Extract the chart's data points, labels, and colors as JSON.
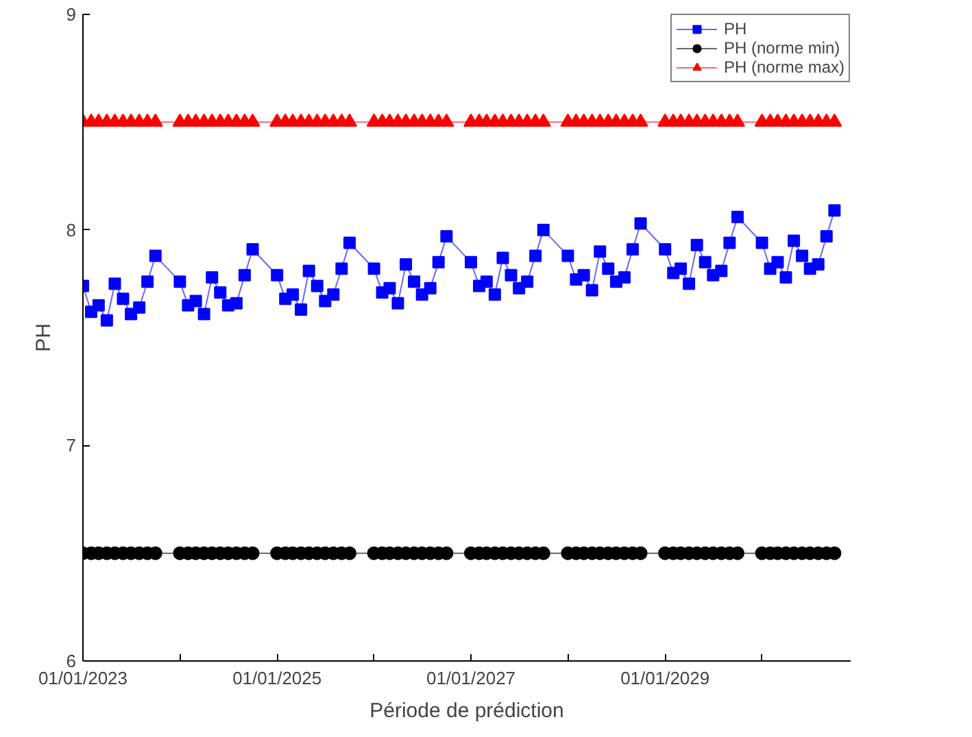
{
  "chart_data": {
    "type": "line",
    "xlabel": "Période de prédiction",
    "ylabel": "PH",
    "x": [
      "2023-01",
      "2023-02",
      "2023-03",
      "2023-04",
      "2023-05",
      "2023-06",
      "2023-07",
      "2023-08",
      "2023-09",
      "2023-10",
      "2024-01",
      "2024-02",
      "2024-03",
      "2024-04",
      "2024-05",
      "2024-06",
      "2024-07",
      "2024-08",
      "2024-09",
      "2024-10",
      "2025-01",
      "2025-02",
      "2025-03",
      "2025-04",
      "2025-05",
      "2025-06",
      "2025-07",
      "2025-08",
      "2025-09",
      "2025-10",
      "2026-01",
      "2026-02",
      "2026-03",
      "2026-04",
      "2026-05",
      "2026-06",
      "2026-07",
      "2026-08",
      "2026-09",
      "2026-10",
      "2027-01",
      "2027-02",
      "2027-03",
      "2027-04",
      "2027-05",
      "2027-06",
      "2027-07",
      "2027-08",
      "2027-09",
      "2027-10",
      "2028-01",
      "2028-02",
      "2028-03",
      "2028-04",
      "2028-05",
      "2028-06",
      "2028-07",
      "2028-08",
      "2028-09",
      "2028-10",
      "2029-01",
      "2029-02",
      "2029-03",
      "2029-04",
      "2029-05",
      "2029-06",
      "2029-07",
      "2029-08",
      "2029-09",
      "2029-10",
      "2030-01",
      "2030-02",
      "2030-03",
      "2030-04",
      "2030-05",
      "2030-06",
      "2030-07",
      "2030-08",
      "2030-09",
      "2030-10"
    ],
    "series": [
      {
        "name": "PH",
        "color": "#0000ff",
        "marker": "square",
        "values": [
          7.74,
          7.62,
          7.65,
          7.58,
          7.75,
          7.68,
          7.61,
          7.64,
          7.76,
          7.88,
          7.76,
          7.65,
          7.67,
          7.61,
          7.78,
          7.71,
          7.65,
          7.66,
          7.79,
          7.91,
          7.79,
          7.68,
          7.7,
          7.63,
          7.81,
          7.74,
          7.67,
          7.7,
          7.82,
          7.94,
          7.82,
          7.71,
          7.73,
          7.66,
          7.84,
          7.76,
          7.7,
          7.73,
          7.85,
          7.97,
          7.85,
          7.74,
          7.76,
          7.7,
          7.87,
          7.79,
          7.73,
          7.76,
          7.88,
          8.0,
          7.88,
          7.77,
          7.79,
          7.72,
          7.9,
          7.82,
          7.76,
          7.78,
          7.91,
          8.03,
          7.91,
          7.8,
          7.82,
          7.75,
          7.93,
          7.85,
          7.79,
          7.81,
          7.94,
          8.06,
          7.94,
          7.82,
          7.85,
          7.78,
          7.95,
          7.88,
          7.82,
          7.84,
          7.97,
          8.09
        ]
      },
      {
        "name": "PH (norme min)",
        "color": "#000000",
        "marker": "circle",
        "values": [
          6.5,
          6.5,
          6.5,
          6.5,
          6.5,
          6.5,
          6.5,
          6.5,
          6.5,
          6.5,
          6.5,
          6.5,
          6.5,
          6.5,
          6.5,
          6.5,
          6.5,
          6.5,
          6.5,
          6.5,
          6.5,
          6.5,
          6.5,
          6.5,
          6.5,
          6.5,
          6.5,
          6.5,
          6.5,
          6.5,
          6.5,
          6.5,
          6.5,
          6.5,
          6.5,
          6.5,
          6.5,
          6.5,
          6.5,
          6.5,
          6.5,
          6.5,
          6.5,
          6.5,
          6.5,
          6.5,
          6.5,
          6.5,
          6.5,
          6.5,
          6.5,
          6.5,
          6.5,
          6.5,
          6.5,
          6.5,
          6.5,
          6.5,
          6.5,
          6.5,
          6.5,
          6.5,
          6.5,
          6.5,
          6.5,
          6.5,
          6.5,
          6.5,
          6.5,
          6.5,
          6.5,
          6.5,
          6.5,
          6.5,
          6.5,
          6.5,
          6.5,
          6.5,
          6.5,
          6.5
        ]
      },
      {
        "name": "PH (norme max)",
        "color": "#ff0000",
        "marker": "triangle",
        "values": [
          8.5,
          8.5,
          8.5,
          8.5,
          8.5,
          8.5,
          8.5,
          8.5,
          8.5,
          8.5,
          8.5,
          8.5,
          8.5,
          8.5,
          8.5,
          8.5,
          8.5,
          8.5,
          8.5,
          8.5,
          8.5,
          8.5,
          8.5,
          8.5,
          8.5,
          8.5,
          8.5,
          8.5,
          8.5,
          8.5,
          8.5,
          8.5,
          8.5,
          8.5,
          8.5,
          8.5,
          8.5,
          8.5,
          8.5,
          8.5,
          8.5,
          8.5,
          8.5,
          8.5,
          8.5,
          8.5,
          8.5,
          8.5,
          8.5,
          8.5,
          8.5,
          8.5,
          8.5,
          8.5,
          8.5,
          8.5,
          8.5,
          8.5,
          8.5,
          8.5,
          8.5,
          8.5,
          8.5,
          8.5,
          8.5,
          8.5,
          8.5,
          8.5,
          8.5,
          8.5,
          8.5,
          8.5,
          8.5,
          8.5,
          8.5,
          8.5,
          8.5,
          8.5,
          8.5,
          8.5
        ]
      }
    ],
    "xlim": [
      "2023-01-01",
      "2030-12-01"
    ],
    "xticks": [
      {
        "value": "2023-01-01",
        "label": "01/01/2023"
      },
      {
        "value": "2024-01-01",
        "label": null
      },
      {
        "value": "2025-01-01",
        "label": "01/01/2025"
      },
      {
        "value": "2026-01-01",
        "label": null
      },
      {
        "value": "2027-01-01",
        "label": "01/01/2027"
      },
      {
        "value": "2028-01-01",
        "label": null
      },
      {
        "value": "2029-01-01",
        "label": "01/01/2029"
      },
      {
        "value": "2030-01-01",
        "label": null
      }
    ],
    "ylim": [
      6,
      9
    ],
    "yticks": [
      6,
      7,
      8,
      9
    ],
    "grid": false,
    "legend": "top right",
    "line_style": "solid"
  }
}
